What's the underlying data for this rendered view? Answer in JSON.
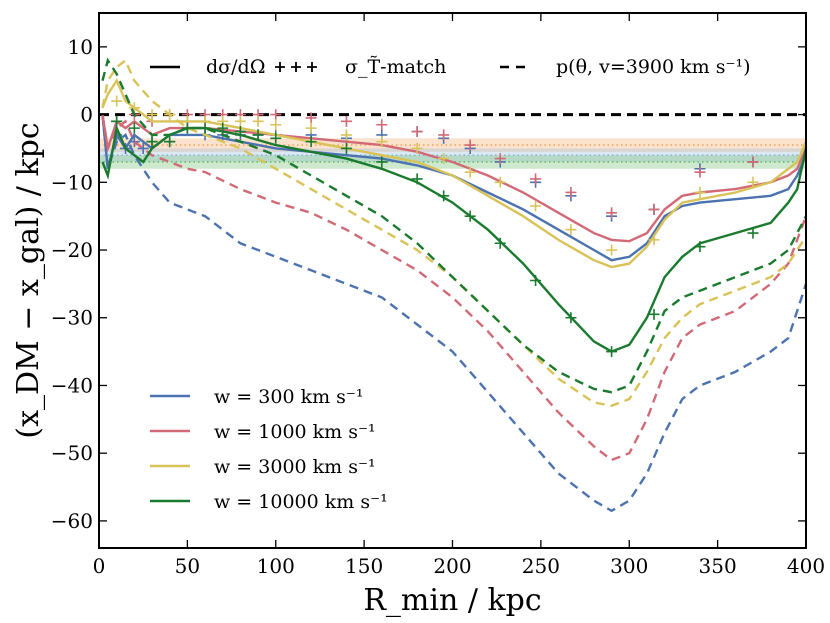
{
  "chart_data": {
    "type": "line",
    "xlabel": "R_min / kpc",
    "ylabel": "(x_DM − x_gal) / kpc",
    "xlim": [
      0,
      400
    ],
    "ylim": [
      -64,
      15
    ],
    "xticks": [
      0,
      50,
      100,
      150,
      200,
      250,
      300,
      350,
      400
    ],
    "xtick_labels": [
      "0",
      "50",
      "100",
      "150",
      "200",
      "250",
      "300",
      "350",
      "400"
    ],
    "yticks": [
      10,
      0,
      -10,
      -20,
      -30,
      -40,
      -50,
      -60
    ],
    "ytick_labels": [
      "10",
      "0",
      "−10",
      "−20",
      "−30",
      "−40",
      "−50",
      "−60"
    ],
    "style_legend": [
      {
        "style": "solid",
        "label": "dσ/dΩ"
      },
      {
        "style": "plus",
        "label": "σ_T̃-match"
      },
      {
        "style": "dashed",
        "label": "p(θ, v=3900 km s⁻¹)"
      }
    ],
    "reference_line": {
      "y": 0,
      "style": "dashed",
      "color": "#000000"
    },
    "bands": [
      {
        "name": "orange band",
        "center": -4.5,
        "half_width": 1.0,
        "color": "#f4a460"
      },
      {
        "name": "blue band",
        "center": -6.0,
        "half_width": 1.0,
        "color": "#8fb8de"
      },
      {
        "name": "green band",
        "center": -7.0,
        "half_width": 1.0,
        "color": "#66bb66"
      }
    ],
    "series": [
      {
        "name": "w = 300 km s⁻¹",
        "color": "#4c72b0",
        "solid": {
          "x": [
            2,
            5,
            10,
            15,
            20,
            25,
            30,
            40,
            50,
            60,
            80,
            100,
            120,
            140,
            160,
            180,
            200,
            220,
            240,
            260,
            280,
            290,
            300,
            310,
            320,
            330,
            340,
            360,
            380,
            390,
            395,
            400
          ],
          "y": [
            0,
            -8,
            -3,
            -5,
            -3,
            -4,
            -5,
            -3,
            -3,
            -3,
            -4,
            -5,
            -5.5,
            -6,
            -6.5,
            -7.5,
            -9,
            -11.5,
            -14,
            -17,
            -20,
            -21.5,
            -21,
            -19,
            -15,
            -13.5,
            -13,
            -12.5,
            -12,
            -11,
            -9,
            -6
          ]
        },
        "dashed": {
          "x": [
            2,
            5,
            10,
            15,
            20,
            30,
            40,
            50,
            60,
            80,
            100,
            120,
            140,
            160,
            180,
            200,
            220,
            240,
            260,
            280,
            290,
            300,
            310,
            320,
            330,
            340,
            360,
            380,
            390,
            400
          ],
          "y": [
            0,
            -8,
            -4,
            -3,
            -6,
            -10,
            -13,
            -14,
            -15,
            -19,
            -21,
            -23,
            -25,
            -27,
            -31,
            -35,
            -41,
            -47,
            -53,
            -57,
            -58.5,
            -57,
            -53,
            -47,
            -42,
            -40,
            -38,
            -35,
            -33,
            -25
          ]
        },
        "markers": {
          "x": [
            10,
            15,
            20,
            25,
            30,
            40,
            50,
            60,
            70,
            80,
            90,
            100,
            120,
            140,
            160,
            180,
            195,
            210,
            227,
            247,
            267,
            290,
            314,
            340,
            370
          ],
          "y": [
            -3,
            -5,
            -4,
            -5,
            -4,
            -4,
            -2,
            -3,
            -3,
            -3,
            -3,
            -3,
            -3,
            -3.5,
            -3,
            -2.5,
            -3.5,
            -5,
            -7,
            -10,
            -12,
            -15,
            -14,
            -8,
            -7
          ]
        }
      },
      {
        "name": "w = 1000 km s⁻¹",
        "color": "#d16a76",
        "solid": {
          "x": [
            2,
            5,
            10,
            15,
            20,
            25,
            30,
            40,
            50,
            60,
            80,
            100,
            120,
            140,
            160,
            180,
            200,
            220,
            240,
            260,
            280,
            290,
            300,
            310,
            320,
            330,
            340,
            360,
            380,
            390,
            395,
            400
          ],
          "y": [
            0,
            -5,
            -1,
            -2,
            -1,
            -2,
            -3,
            -2,
            -2,
            -2,
            -2.5,
            -3,
            -3.5,
            -4,
            -4.5,
            -5.5,
            -7,
            -9,
            -11.5,
            -14.5,
            -17.5,
            -18.5,
            -18.7,
            -17.5,
            -14,
            -12,
            -11.5,
            -11,
            -10,
            -9,
            -8,
            -5
          ]
        },
        "dashed": {
          "x": [
            2,
            5,
            10,
            15,
            20,
            30,
            40,
            50,
            60,
            80,
            100,
            120,
            140,
            160,
            180,
            200,
            220,
            240,
            260,
            280,
            290,
            300,
            310,
            320,
            330,
            340,
            360,
            380,
            390,
            400
          ],
          "y": [
            0,
            -5,
            -2,
            -1,
            -4,
            -6,
            -7,
            -8,
            -8.5,
            -11,
            -13,
            -14.5,
            -17,
            -20,
            -23,
            -27,
            -32,
            -38,
            -44,
            -49,
            -51,
            -50,
            -45,
            -38,
            -33,
            -31,
            -29,
            -25,
            -22,
            -15
          ]
        },
        "markers": {
          "x": [
            10,
            20,
            30,
            40,
            50,
            60,
            70,
            80,
            90,
            100,
            120,
            140,
            160,
            180,
            195,
            210,
            227,
            247,
            267,
            290,
            314,
            340,
            370
          ],
          "y": [
            -1,
            0,
            -1,
            0,
            0,
            0,
            0,
            0,
            0,
            0,
            -0.5,
            -1,
            -1.5,
            -2.5,
            -3,
            -4.5,
            -6.5,
            -9.5,
            -11.5,
            -14.5,
            -14,
            -8.5,
            -7
          ]
        }
      },
      {
        "name": "w = 3000 km s⁻¹",
        "color": "#d9c257",
        "solid": {
          "x": [
            2,
            5,
            10,
            15,
            20,
            25,
            30,
            40,
            50,
            60,
            80,
            100,
            120,
            140,
            160,
            180,
            200,
            220,
            240,
            260,
            280,
            290,
            300,
            310,
            320,
            330,
            340,
            360,
            380,
            390,
            395,
            400
          ],
          "y": [
            1,
            3,
            5,
            2,
            1,
            0,
            -1,
            -1,
            -1,
            -1,
            -2,
            -3,
            -4,
            -5,
            -6,
            -7,
            -9,
            -12,
            -15,
            -18.5,
            -21.5,
            -22.5,
            -22,
            -19.5,
            -15.5,
            -13,
            -12.5,
            -11.5,
            -10,
            -8,
            -7,
            -4
          ]
        },
        "dashed": {
          "x": [
            2,
            5,
            10,
            15,
            20,
            30,
            40,
            50,
            60,
            80,
            100,
            120,
            140,
            160,
            180,
            200,
            220,
            240,
            260,
            280,
            290,
            300,
            310,
            320,
            330,
            340,
            360,
            380,
            390,
            400
          ],
          "y": [
            1,
            5,
            7,
            8,
            5,
            2,
            0,
            -2,
            -3,
            -5,
            -8,
            -11,
            -14,
            -17,
            -20,
            -24,
            -29,
            -34,
            -39,
            -42.5,
            -43,
            -42,
            -38,
            -33,
            -30,
            -28,
            -26,
            -24,
            -22,
            -18
          ]
        },
        "markers": {
          "x": [
            10,
            20,
            30,
            40,
            50,
            60,
            70,
            80,
            90,
            100,
            120,
            140,
            160,
            180,
            195,
            210,
            227,
            247,
            267,
            290,
            314,
            340,
            370
          ],
          "y": [
            2,
            1,
            0,
            0,
            -1,
            -1,
            -1,
            -1,
            -1,
            -1.5,
            -2,
            -3,
            -4,
            -5,
            -6.5,
            -8.5,
            -10,
            -13.5,
            -17,
            -20,
            -18.5,
            -11.5,
            -10
          ]
        }
      },
      {
        "name": "w = 10000 km s⁻¹",
        "color": "#1a7a2e",
        "solid": {
          "x": [
            2,
            5,
            10,
            15,
            20,
            25,
            30,
            40,
            50,
            60,
            80,
            100,
            120,
            140,
            160,
            180,
            200,
            220,
            240,
            260,
            280,
            290,
            300,
            310,
            320,
            330,
            340,
            360,
            380,
            390,
            395,
            400
          ],
          "y": [
            -7,
            -9,
            -2,
            -5,
            -6,
            -7,
            -5,
            -3,
            -2,
            -2,
            -3,
            -4.5,
            -5.5,
            -6.5,
            -8,
            -10,
            -13,
            -17,
            -22,
            -28,
            -33.5,
            -35,
            -34,
            -30,
            -24,
            -21,
            -19,
            -17.5,
            -16,
            -13,
            -11,
            -5
          ]
        },
        "dashed": {
          "x": [
            2,
            5,
            10,
            15,
            20,
            30,
            40,
            50,
            60,
            80,
            100,
            120,
            140,
            160,
            180,
            200,
            220,
            240,
            260,
            280,
            290,
            300,
            310,
            320,
            330,
            340,
            360,
            380,
            390,
            400
          ],
          "y": [
            5,
            8,
            6,
            3,
            0,
            -3,
            -3,
            -2,
            -2,
            -4,
            -6,
            -9,
            -12,
            -15,
            -19,
            -24,
            -29,
            -34,
            -38,
            -40.5,
            -41,
            -40,
            -35,
            -29,
            -27,
            -26,
            -24,
            -22,
            -20,
            -15
          ]
        },
        "markers": {
          "x": [
            10,
            20,
            30,
            40,
            50,
            60,
            70,
            80,
            90,
            100,
            120,
            140,
            160,
            180,
            195,
            210,
            227,
            247,
            267,
            290,
            314,
            340,
            370
          ],
          "y": [
            -1,
            -2,
            -4,
            -4,
            -2,
            -2,
            -2,
            -2.5,
            -3,
            -3.5,
            -4,
            -5,
            -7,
            -9.5,
            -12,
            -15,
            -19,
            -24.5,
            -30,
            -35,
            -29.5,
            -19.5,
            -17.5
          ]
        }
      }
    ]
  }
}
